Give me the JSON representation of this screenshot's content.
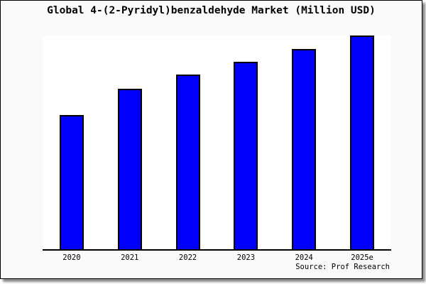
{
  "colors": {
    "figure_background": "#fafafa",
    "plot_background": "#ffffff",
    "bar_fill": "#0000fb",
    "bar_border": "#000000",
    "axis_line": "#000000",
    "frame_border": "#000000",
    "shadow": "#8a8a8a",
    "text": "#000000"
  },
  "chart_data": {
    "type": "bar",
    "title": "Global 4-(2-Pyridyl)benzaldehyde Market (Million USD)",
    "categories": [
      "2020",
      "2021",
      "2022",
      "2023",
      "2024",
      "2025e"
    ],
    "values": [
      62.8,
      75.1,
      81.7,
      87.7,
      93.7,
      100
    ],
    "values_note": "No y-axis scale shown; values are bar heights as % of tallest (2025e) bar",
    "xlabel": "",
    "ylabel": "",
    "ylim": [
      0,
      100
    ],
    "grid": false,
    "legend": false,
    "source": "Source: Prof Research"
  }
}
